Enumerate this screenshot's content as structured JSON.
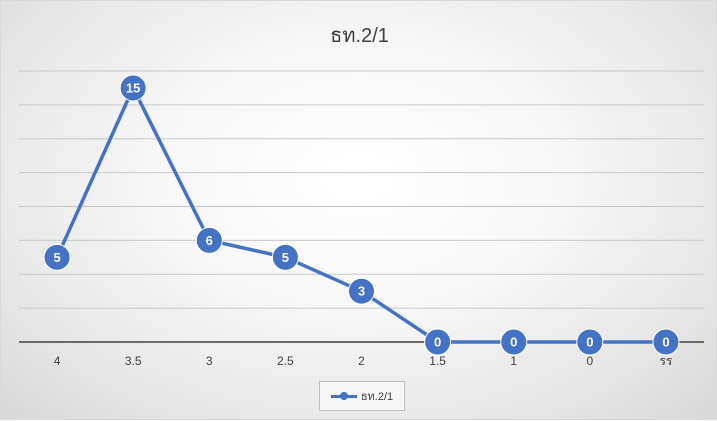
{
  "chart_data": {
    "type": "line",
    "title": "ธท.2/1",
    "categories": [
      "4",
      "3.5",
      "3",
      "2.5",
      "2",
      "1.5",
      "1",
      "0",
      "รร"
    ],
    "series": [
      {
        "name": "ธท.2/1",
        "values": [
          5,
          15,
          6,
          5,
          3,
          0,
          0,
          0,
          0
        ]
      }
    ],
    "ylim": [
      0,
      16
    ],
    "y_gridline_step": 2,
    "grid": true,
    "legend_position": "bottom",
    "data_labels": true,
    "colors": {
      "series": "#4472c4",
      "gridline": "#c8c8c8",
      "axis": "#404040"
    }
  }
}
